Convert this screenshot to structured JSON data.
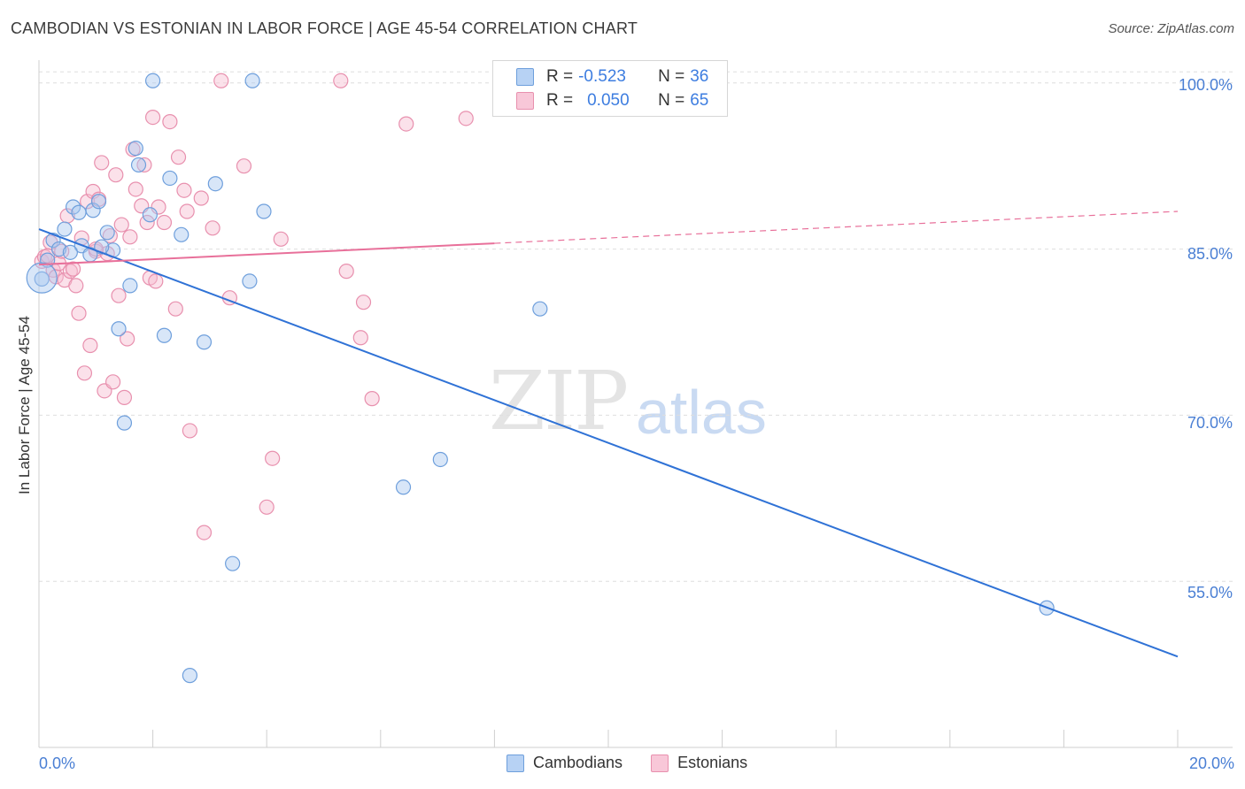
{
  "title": "CAMBODIAN VS ESTONIAN IN LABOR FORCE | AGE 45-54 CORRELATION CHART",
  "source": "Source: ZipAtlas.com",
  "watermark": {
    "zip": "ZIP",
    "atlas": "atlas"
  },
  "legend_top": [
    {
      "r_label": "R = ",
      "r_value": "-0.523",
      "n_label": "N = ",
      "n_value": "36"
    },
    {
      "r_label": "R = ",
      "r_value": "0.050",
      "n_label": "N = ",
      "n_value": "65"
    }
  ],
  "legend_bottom": [
    "Cambodians",
    "Estonians"
  ],
  "colors": {
    "cambodian_fill": "#a8c8f0",
    "cambodian_stroke": "#6e9fdc",
    "cambodian_line": "#2f72d6",
    "estonian_fill": "#f6bcd0",
    "estonian_stroke": "#e890ae",
    "estonian_line": "#e8709a",
    "tick_text": "#4a7fd4",
    "grid": "#dedede"
  },
  "chart_data": {
    "type": "scatter",
    "title": "CAMBODIAN VS ESTONIAN IN LABOR FORCE | AGE 45-54 CORRELATION CHART",
    "xlabel": "",
    "ylabel": "In Labor Force | Age 45-54",
    "xlim": [
      0,
      20
    ],
    "ylim": [
      40,
      101.5
    ],
    "x_tick_labels": [
      "0.0%",
      "20.0%"
    ],
    "y_ticks": [
      55,
      70,
      85,
      100
    ],
    "y_tick_labels": [
      "55.0%",
      "70.0%",
      "85.0%",
      "100.0%"
    ],
    "grid": true,
    "legend_position": "top-center",
    "series": [
      {
        "name": "Cambodians",
        "points": [
          [
            0.15,
            84.0
          ],
          [
            0.25,
            85.8
          ],
          [
            0.35,
            85.0
          ],
          [
            0.45,
            86.8
          ],
          [
            0.6,
            88.8
          ],
          [
            0.7,
            88.3
          ],
          [
            0.75,
            85.3
          ],
          [
            0.9,
            84.5
          ],
          [
            0.95,
            88.5
          ],
          [
            1.05,
            89.3
          ],
          [
            1.2,
            86.5
          ],
          [
            1.3,
            84.9
          ],
          [
            1.4,
            77.8
          ],
          [
            1.5,
            69.3
          ],
          [
            1.6,
            81.7
          ],
          [
            1.7,
            94.1
          ],
          [
            1.75,
            92.6
          ],
          [
            1.95,
            88.1
          ],
          [
            2.0,
            100.2
          ],
          [
            2.2,
            77.2
          ],
          [
            2.3,
            91.4
          ],
          [
            2.5,
            86.3
          ],
          [
            2.65,
            46.5
          ],
          [
            2.9,
            76.6
          ],
          [
            3.1,
            90.9
          ],
          [
            3.4,
            56.6
          ],
          [
            3.7,
            82.1
          ],
          [
            3.75,
            100.2
          ],
          [
            3.95,
            88.4
          ],
          [
            6.4,
            63.5
          ],
          [
            7.05,
            66.0
          ],
          [
            8.8,
            79.6
          ],
          [
            17.7,
            52.6
          ],
          [
            0.05,
            82.3
          ],
          [
            0.55,
            84.7
          ],
          [
            1.1,
            85.2
          ]
        ],
        "trend": {
          "x": [
            0,
            20
          ],
          "y": [
            86.8,
            48.2
          ]
        }
      },
      {
        "name": "Estonians",
        "points": [
          [
            0.05,
            83.9
          ],
          [
            0.1,
            84.3
          ],
          [
            0.2,
            85.6
          ],
          [
            0.25,
            83.1
          ],
          [
            0.3,
            82.5
          ],
          [
            0.35,
            83.7
          ],
          [
            0.4,
            84.8
          ],
          [
            0.45,
            82.2
          ],
          [
            0.5,
            88.0
          ],
          [
            0.55,
            83.0
          ],
          [
            0.65,
            81.7
          ],
          [
            0.7,
            79.2
          ],
          [
            0.75,
            86.0
          ],
          [
            0.8,
            73.8
          ],
          [
            0.85,
            89.3
          ],
          [
            0.9,
            76.3
          ],
          [
            0.95,
            90.2
          ],
          [
            1.0,
            84.8
          ],
          [
            1.05,
            89.5
          ],
          [
            1.1,
            92.8
          ],
          [
            1.15,
            72.2
          ],
          [
            1.2,
            84.6
          ],
          [
            1.25,
            86.2
          ],
          [
            1.3,
            73.0
          ],
          [
            1.35,
            91.7
          ],
          [
            1.4,
            80.8
          ],
          [
            1.45,
            87.2
          ],
          [
            1.5,
            71.6
          ],
          [
            1.55,
            76.9
          ],
          [
            1.6,
            86.1
          ],
          [
            1.65,
            94.0
          ],
          [
            1.7,
            90.4
          ],
          [
            1.8,
            88.9
          ],
          [
            1.85,
            92.6
          ],
          [
            1.9,
            87.4
          ],
          [
            1.95,
            82.4
          ],
          [
            2.0,
            96.9
          ],
          [
            2.05,
            82.1
          ],
          [
            2.1,
            88.8
          ],
          [
            2.2,
            87.4
          ],
          [
            2.3,
            96.5
          ],
          [
            2.4,
            79.6
          ],
          [
            2.45,
            93.3
          ],
          [
            2.55,
            90.3
          ],
          [
            2.6,
            88.4
          ],
          [
            2.65,
            68.6
          ],
          [
            2.85,
            89.6
          ],
          [
            2.9,
            59.4
          ],
          [
            3.05,
            86.9
          ],
          [
            3.35,
            80.6
          ],
          [
            3.2,
            100.2
          ],
          [
            3.6,
            92.5
          ],
          [
            4.0,
            61.7
          ],
          [
            4.1,
            66.1
          ],
          [
            4.25,
            85.9
          ],
          [
            5.3,
            100.2
          ],
          [
            5.4,
            83.0
          ],
          [
            5.65,
            77.0
          ],
          [
            5.7,
            80.2
          ],
          [
            5.85,
            71.5
          ],
          [
            6.45,
            96.3
          ],
          [
            7.5,
            96.8
          ],
          [
            0.15,
            84.4
          ],
          [
            0.6,
            83.2
          ],
          [
            1.0,
            85.0
          ]
        ],
        "trend": {
          "x": [
            0,
            20
          ],
          "y": [
            83.6,
            88.4
          ],
          "solid_until_x": 8.0
        }
      }
    ]
  }
}
